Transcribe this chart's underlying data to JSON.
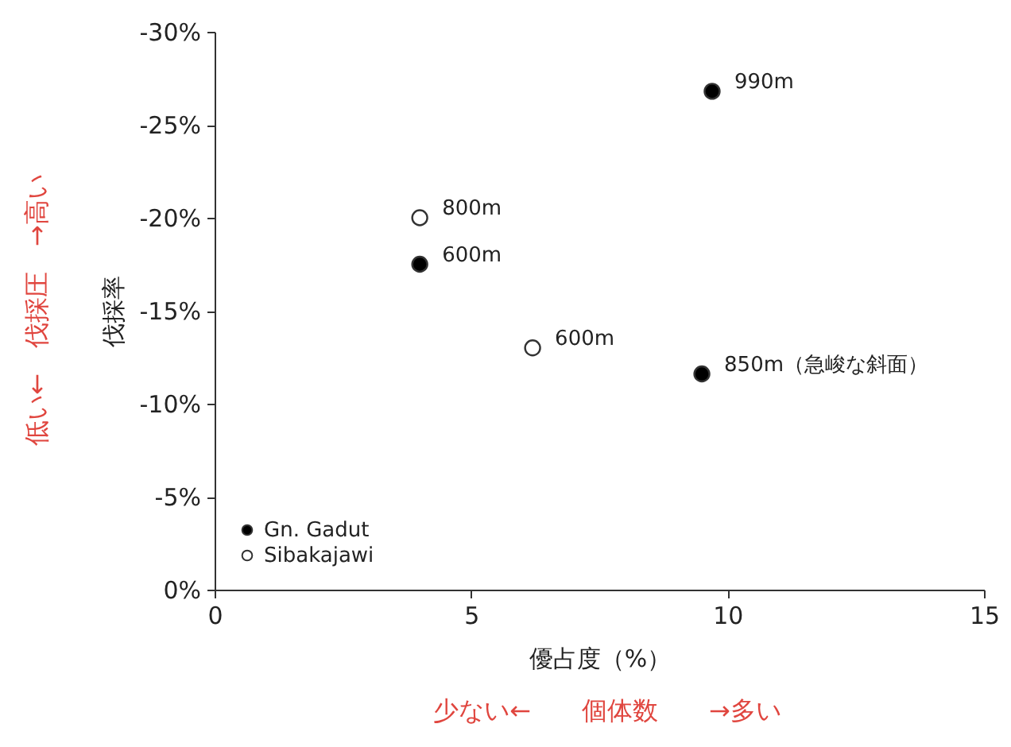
{
  "chart_data": {
    "type": "scatter",
    "xlabel": "優占度（%）",
    "ylabel": "伐採率",
    "xlim": [
      0,
      15
    ],
    "xticks": [
      0,
      5,
      10,
      15
    ],
    "ylim": [
      0,
      -30
    ],
    "yticks": [
      {
        "value": 0,
        "label": "0%"
      },
      {
        "value": -5,
        "label": "-5%"
      },
      {
        "value": -10,
        "label": "-10%"
      },
      {
        "value": -15,
        "label": "-15%"
      },
      {
        "value": -20,
        "label": "-20%"
      },
      {
        "value": -25,
        "label": "-25%"
      },
      {
        "value": -30,
        "label": "-30%"
      }
    ],
    "series": [
      {
        "name": "Gn. Gadut",
        "color": "#000000",
        "x": [
          9.7,
          4.0,
          9.5
        ],
        "values": [
          -26.8,
          -17.5,
          -11.6
        ]
      },
      {
        "name": "Sibakajawi",
        "color": "#ffffff",
        "x": [
          4.0,
          6.2
        ],
        "values": [
          -20.0,
          -13.0
        ]
      }
    ],
    "marker": "circle",
    "grid": false,
    "legend": "bottom left",
    "annotations": [
      {
        "text": "990m",
        "x": 9.7,
        "y": -26.8
      },
      {
        "text": "800m",
        "x": 4.0,
        "y": -20.0
      },
      {
        "text": "600m",
        "x": 4.0,
        "y": -17.5
      },
      {
        "text": "600m",
        "x": 6.2,
        "y": -13.0
      },
      {
        "text": "850m（急峻な斜面）",
        "x": 9.5,
        "y": -11.6
      },
      "低い←　伐採圧　→高い",
      "少ない←　　個体数　　→多い"
    ]
  }
}
